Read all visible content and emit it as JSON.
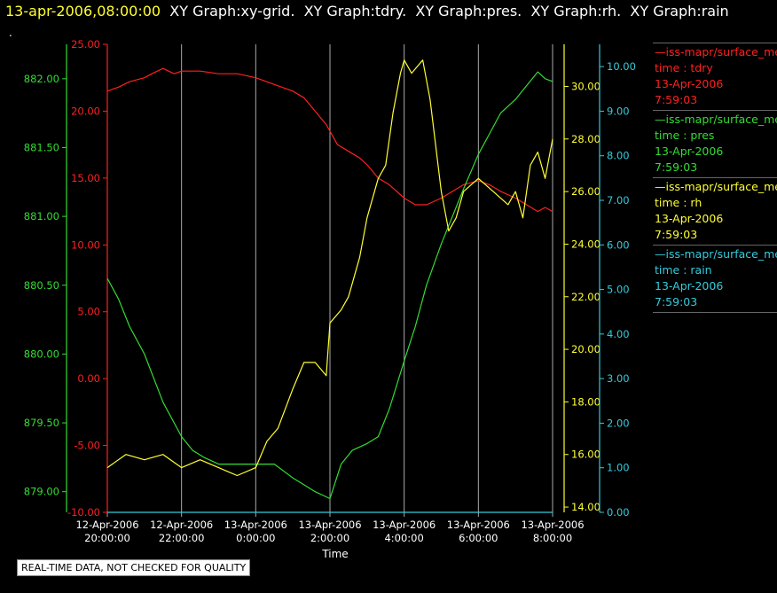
{
  "header": {
    "timestamp": "13-apr-2006,08:00:00",
    "graphs": [
      "XY Graph:xy-grid.",
      "XY Graph:tdry.",
      "XY Graph:pres.",
      "XY Graph:rh.",
      "XY Graph:rain"
    ],
    "dot": "."
  },
  "legend": [
    {
      "name": "—iss-mapr/surface_met",
      "field": "time : tdry",
      "date": "13-Apr-2006",
      "time": "7:59:03",
      "color": "#ff2020"
    },
    {
      "name": "—iss-mapr/surface_met",
      "field": "time : pres",
      "date": "13-Apr-2006",
      "time": "7:59:03",
      "color": "#33dd33"
    },
    {
      "name": "—iss-mapr/surface_met",
      "field": "time : rh",
      "date": "13-Apr-2006",
      "time": "7:59:03",
      "color": "#ffff33"
    },
    {
      "name": "—iss-mapr/surface_met",
      "field": "time : rain",
      "date": "13-Apr-2006",
      "time": "7:59:03",
      "color": "#33ccdd"
    }
  ],
  "disclaimer": "REAL-TIME DATA, NOT CHECKED FOR QUALITY",
  "chart_data": {
    "type": "line",
    "xlabel": "Time",
    "x_range": [
      0,
      12
    ],
    "x_ticks": [
      {
        "x": 0,
        "line1": "12-Apr-2006",
        "line2": "20:00:00"
      },
      {
        "x": 2,
        "line1": "12-Apr-2006",
        "line2": "22:00:00"
      },
      {
        "x": 4,
        "line1": "13-Apr-2006",
        "line2": "0:00:00"
      },
      {
        "x": 6,
        "line1": "13-Apr-2006",
        "line2": "2:00:00"
      },
      {
        "x": 8,
        "line1": "13-Apr-2006",
        "line2": "4:00:00"
      },
      {
        "x": 10,
        "line1": "13-Apr-2006",
        "line2": "6:00:00"
      },
      {
        "x": 12,
        "line1": "13-Apr-2006",
        "line2": "8:00:00"
      }
    ],
    "grid_x": true,
    "axes": {
      "pres": {
        "color": "#33dd33",
        "range": [
          878.85,
          882.25
        ],
        "ticks": [
          "879.00",
          "879.50",
          "880.00",
          "880.50",
          "881.00",
          "881.50",
          "882.00"
        ]
      },
      "tdry": {
        "color": "#ff2020",
        "range": [
          -10,
          25
        ],
        "ticks": [
          "-10.00",
          "-5.00",
          "0.00",
          "5.00",
          "10.00",
          "15.00",
          "20.00",
          "25.00"
        ]
      },
      "rh": {
        "color": "#ffff33",
        "range": [
          13.8,
          31.6
        ],
        "ticks": [
          "14.00",
          "16.00",
          "18.00",
          "20.00",
          "22.00",
          "24.00",
          "26.00",
          "28.00",
          "30.00"
        ]
      },
      "rain": {
        "color": "#33ccdd",
        "range": [
          0,
          10.5
        ],
        "ticks": [
          "0.00",
          "1.00",
          "2.00",
          "3.00",
          "4.00",
          "5.00",
          "6.00",
          "7.00",
          "8.00",
          "9.00",
          "10.00"
        ]
      }
    },
    "series": [
      {
        "name": "tdry",
        "axis": "tdry",
        "x": [
          0,
          0.3,
          0.6,
          1,
          1.2,
          1.5,
          1.8,
          2,
          2.5,
          3,
          3.5,
          4,
          4.5,
          5,
          5.3,
          5.6,
          5.9,
          6.2,
          6.5,
          6.8,
          7,
          7.3,
          7.6,
          8,
          8.3,
          8.6,
          9,
          9.3,
          9.6,
          10,
          10.3,
          10.6,
          11,
          11.3,
          11.6,
          11.8,
          12
        ],
        "y": [
          21.5,
          21.8,
          22.2,
          22.5,
          22.8,
          23.2,
          22.8,
          23.0,
          23.0,
          22.8,
          22.8,
          22.5,
          22.0,
          21.5,
          21.0,
          20.0,
          19.0,
          17.5,
          17.0,
          16.5,
          16.0,
          15.0,
          14.5,
          13.5,
          13.0,
          13.0,
          13.5,
          14.0,
          14.5,
          14.8,
          14.5,
          14.0,
          13.5,
          13.0,
          12.5,
          12.8,
          12.5
        ]
      },
      {
        "name": "pres",
        "axis": "pres",
        "x": [
          0,
          0.3,
          0.6,
          1,
          1.5,
          2,
          2.3,
          2.6,
          3,
          3.5,
          4,
          4.5,
          5,
          5.3,
          5.6,
          6,
          6.3,
          6.6,
          7,
          7.3,
          7.6,
          8,
          8.3,
          8.6,
          9,
          9.3,
          9.6,
          10,
          10.3,
          10.6,
          11,
          11.3,
          11.6,
          11.8,
          12
        ],
        "y": [
          880.55,
          880.4,
          880.2,
          880.0,
          879.65,
          879.4,
          879.3,
          879.25,
          879.2,
          879.2,
          879.2,
          879.2,
          879.1,
          879.05,
          879.0,
          878.95,
          879.2,
          879.3,
          879.35,
          879.4,
          879.6,
          879.95,
          880.2,
          880.5,
          880.8,
          881.0,
          881.2,
          881.45,
          881.6,
          881.75,
          881.85,
          881.95,
          882.05,
          882.0,
          881.98
        ]
      },
      {
        "name": "rh",
        "axis": "rh",
        "x": [
          0,
          0.5,
          1,
          1.5,
          2,
          2.5,
          3,
          3.5,
          4,
          4.3,
          4.6,
          5,
          5.3,
          5.6,
          5.9,
          6,
          6.3,
          6.5,
          6.8,
          7,
          7.3,
          7.5,
          7.7,
          7.9,
          8,
          8.2,
          8.5,
          8.7,
          9,
          9.2,
          9.4,
          9.6,
          10,
          10.4,
          10.8,
          11,
          11.2,
          11.4,
          11.6,
          11.8,
          12
        ],
        "y": [
          15.5,
          16,
          15.8,
          16,
          15.5,
          15.8,
          15.5,
          15.2,
          15.5,
          16.5,
          17,
          18.5,
          19.5,
          19.5,
          19.0,
          21,
          21.5,
          22,
          23.5,
          25,
          26.5,
          27,
          29,
          30.5,
          31,
          30.5,
          31,
          29.5,
          26,
          24.5,
          25,
          26,
          26.5,
          26,
          25.5,
          26,
          25,
          27,
          27.5,
          26.5,
          28
        ]
      },
      {
        "name": "rain",
        "axis": "rain",
        "x": [
          0,
          12
        ],
        "y": [
          0,
          0
        ]
      }
    ]
  }
}
